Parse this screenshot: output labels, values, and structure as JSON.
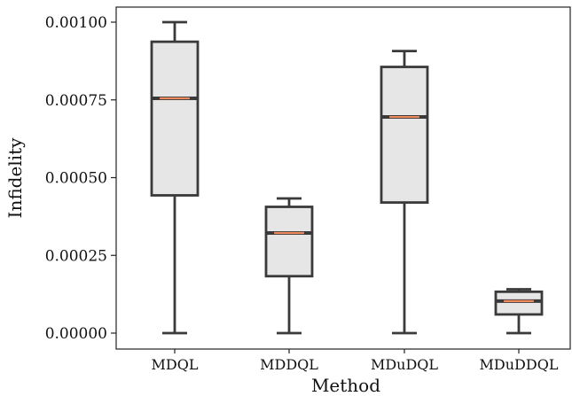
{
  "chart_data": {
    "type": "boxplot",
    "xlabel": "Method",
    "ylabel": "Infidelity",
    "ylim": [
      -5e-05,
      0.00105
    ],
    "yticks": [
      0.0,
      0.00025,
      0.0005,
      0.00075,
      0.001
    ],
    "ytick_labels": [
      "0.00000",
      "0.00025",
      "0.00050",
      "0.00075",
      "0.00100"
    ],
    "grid": false,
    "categories": [
      "MDQL",
      "MDDQL",
      "MDuDQL",
      "MDuDDQL"
    ],
    "boxes": [
      {
        "category": "MDQL",
        "whisker_low": 0.0,
        "q1": 0.000443,
        "median": 0.000755,
        "q3": 0.000937,
        "whisker_high": 0.001
      },
      {
        "category": "MDDQL",
        "whisker_low": 0.0,
        "q1": 0.000183,
        "median": 0.000322,
        "q3": 0.000406,
        "whisker_high": 0.000433
      },
      {
        "category": "MDuDQL",
        "whisker_low": 0.0,
        "q1": 0.00042,
        "median": 0.000695,
        "q3": 0.000856,
        "whisker_high": 0.000907
      },
      {
        "category": "MDuDDQL",
        "whisker_low": 0.0,
        "q1": 6e-05,
        "median": 0.000103,
        "q3": 0.000133,
        "whisker_high": 0.000141
      }
    ],
    "colors": {
      "box_fill": "#e6e6e6",
      "box_edge": "#3a3a3a",
      "median": "#f08a5d"
    }
  }
}
